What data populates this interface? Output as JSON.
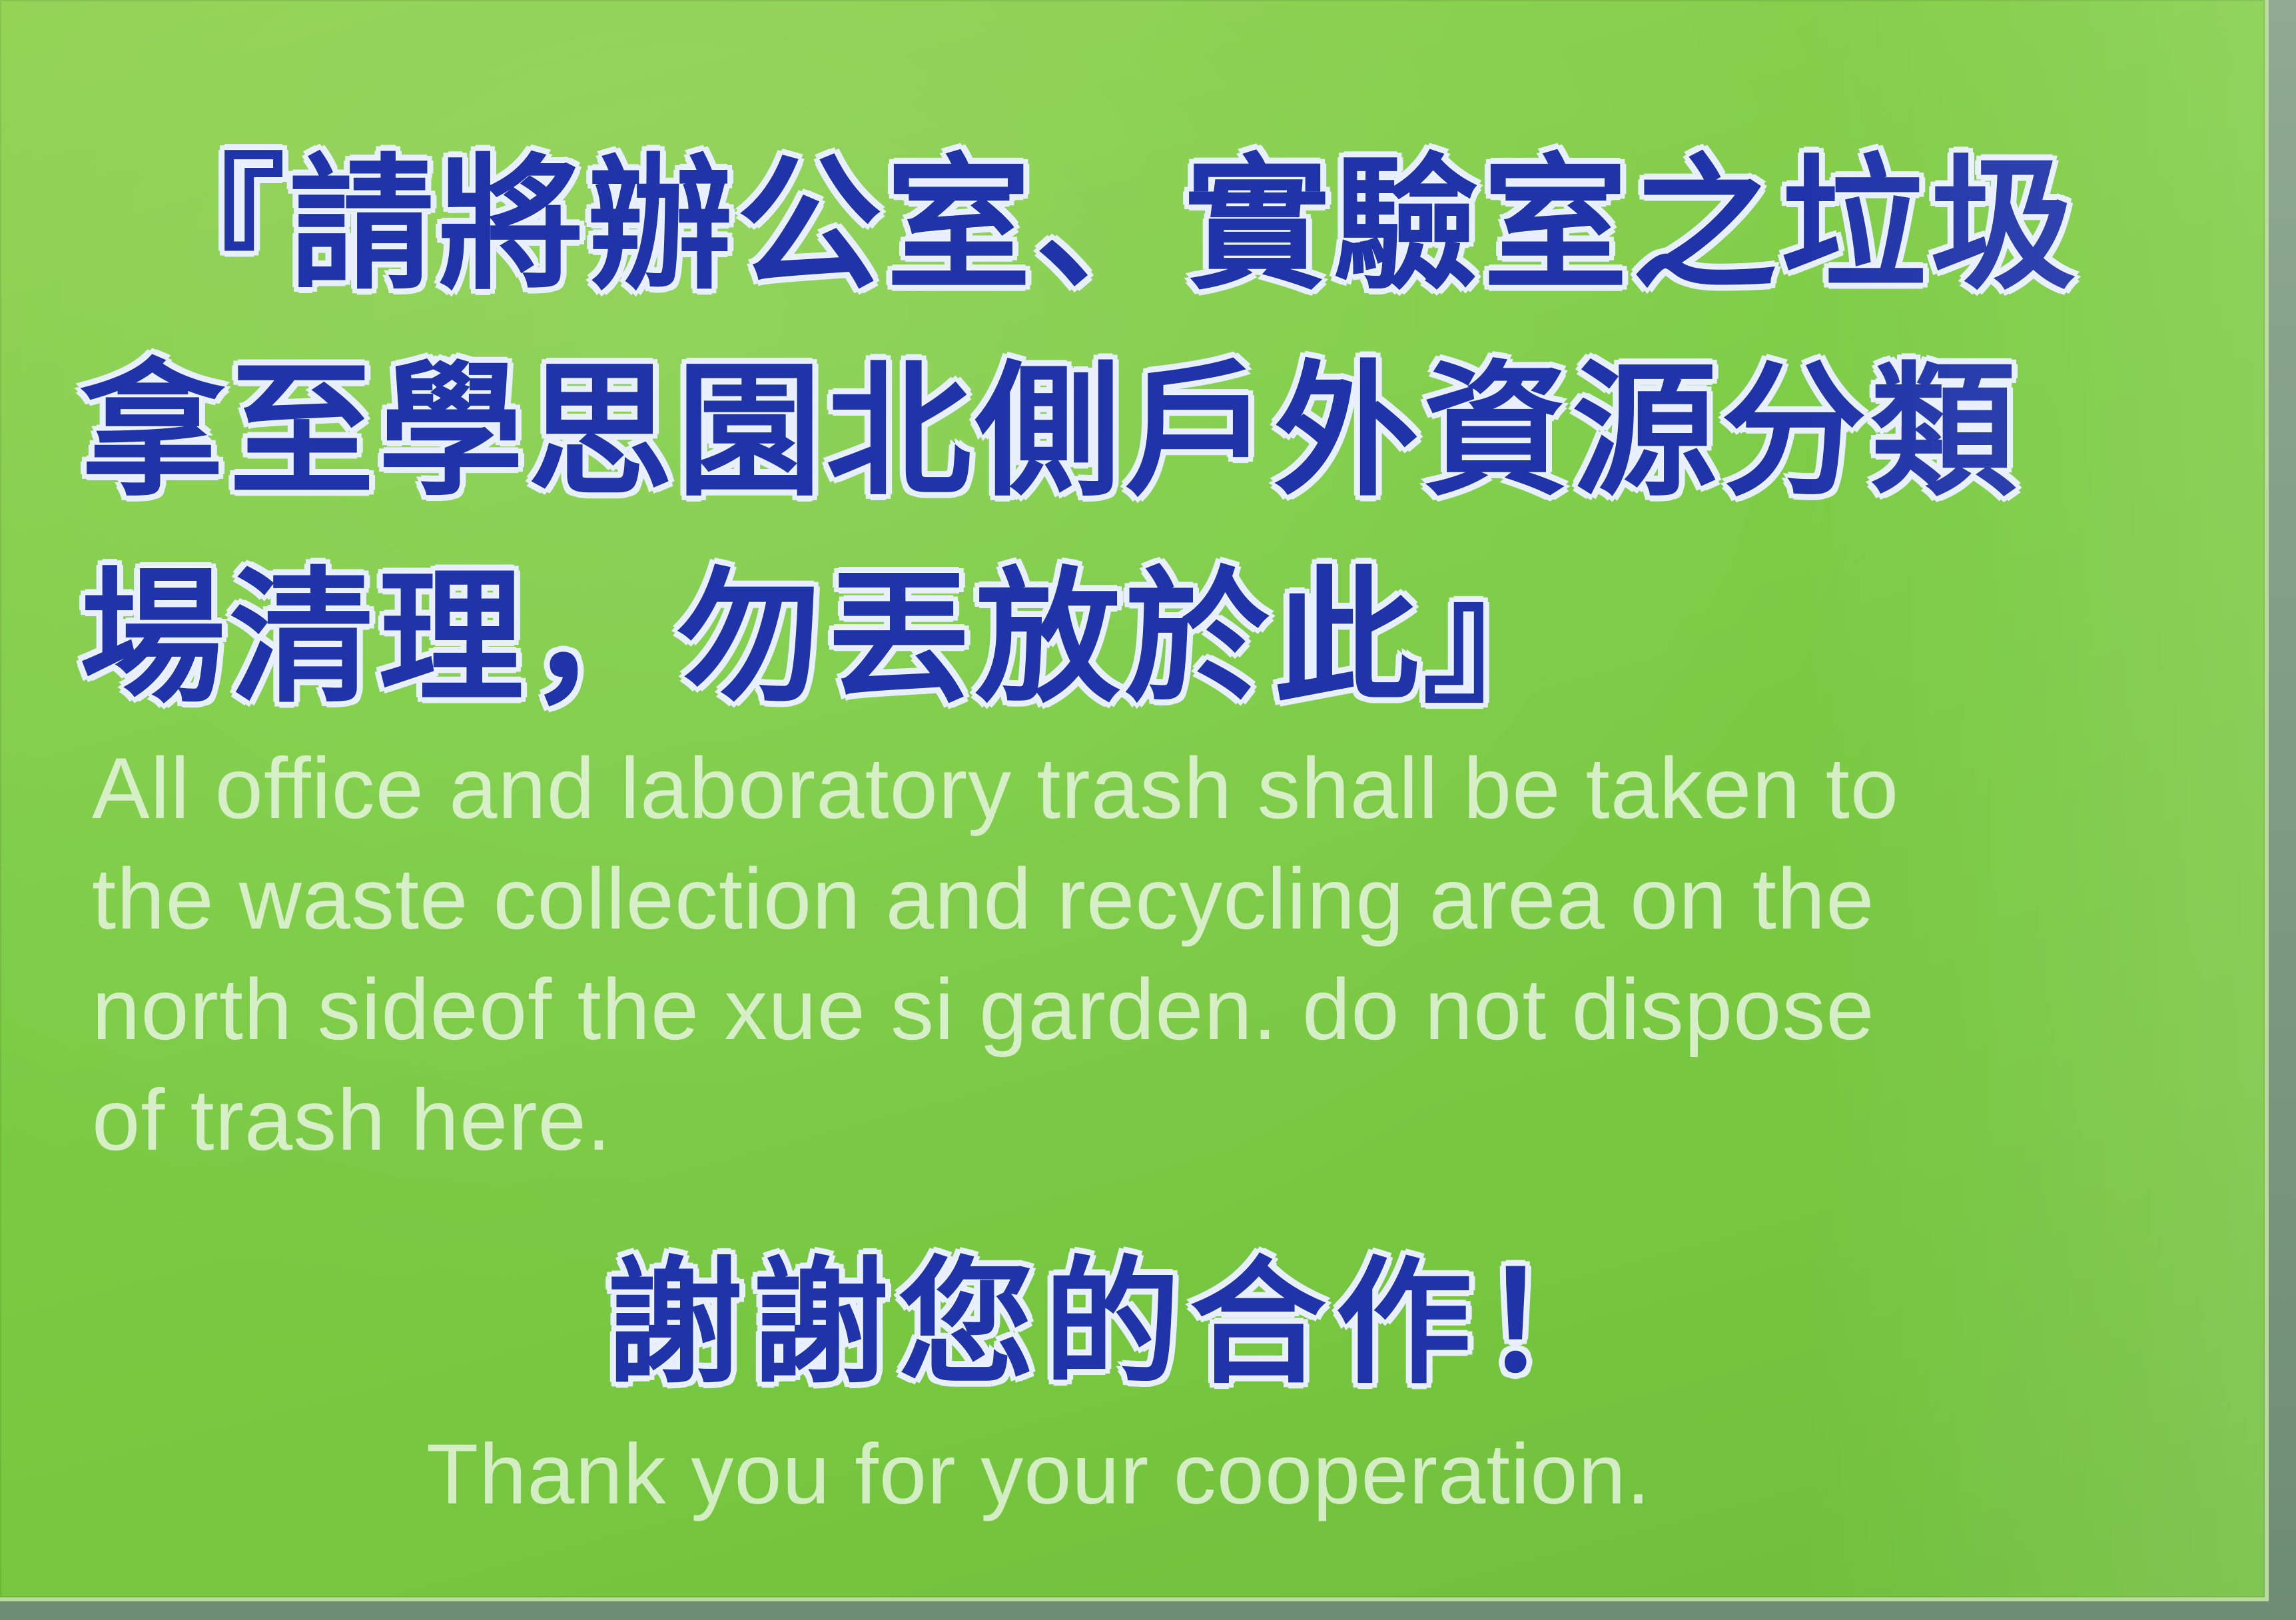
{
  "sign": {
    "background_color": "#7ccc44",
    "zh_text_color": "#1f34a8",
    "zh_outline_color": "#e8f0ff",
    "en_text_color": "#ecf8e6",
    "notice_zh": {
      "line1": "『請將辦公室、實驗室之垃圾",
      "line2": "拿至學思園北側戶外資源分類",
      "line3": "場清理，勿丟放於此』"
    },
    "notice_en": {
      "line1": "All office and laboratory trash shall be taken to",
      "line2": "the  waste collection and recycling area on the",
      "line3": "north sideof the xue si garden.  do not dispose",
      "line4": "of trash here."
    },
    "thanks_zh": "謝謝您的合作！",
    "thanks_en": "Thank you for your cooperation."
  }
}
